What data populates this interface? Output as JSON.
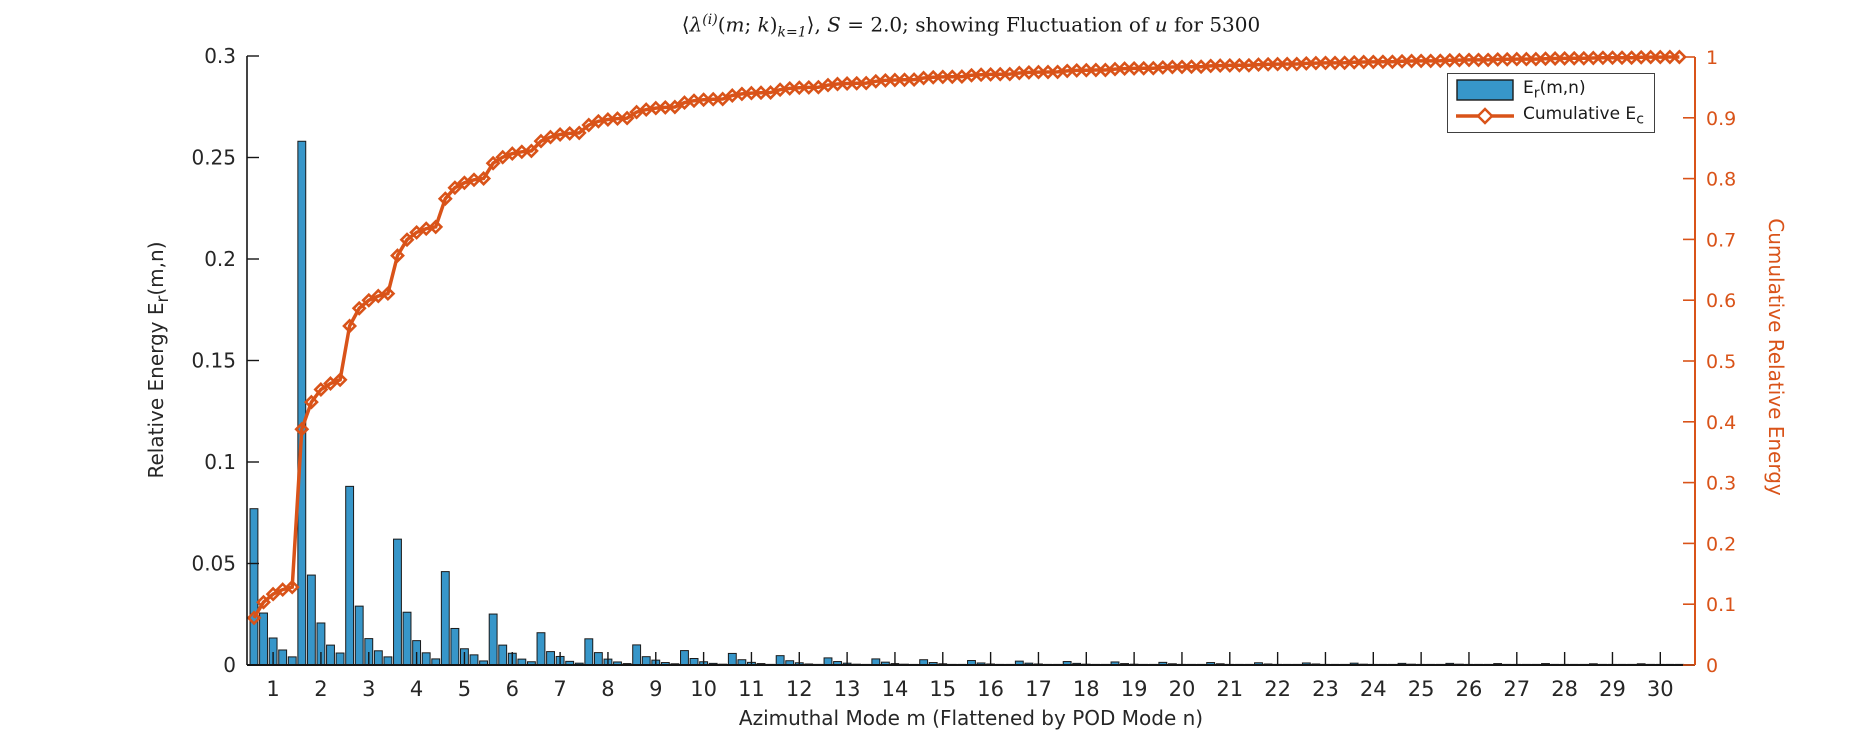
{
  "figure": {
    "background": "#ffffff",
    "title_plain": "⟨λ^(i)(m;k)_{k=1}⟩, S = 2.0; showing Fluctuation of u for 5300",
    "title_segments": [
      {
        "text": "⟨"
      },
      {
        "text": "λ",
        "italic": true
      },
      {
        "text": "(i)",
        "sup": true,
        "italic": true
      },
      {
        "text": "("
      },
      {
        "text": "m",
        "italic": true
      },
      {
        "text": "; "
      },
      {
        "text": "k",
        "italic": true
      },
      {
        "text": ")"
      },
      {
        "text": "k=1",
        "sub": true,
        "italic": true
      },
      {
        "text": "⟩, "
      },
      {
        "text": "S",
        "italic": true
      },
      {
        "text": " = 2.0; showing Fluctuation of "
      },
      {
        "text": "u",
        "italic": true
      },
      {
        "text": " for 5300"
      }
    ]
  },
  "axes": {
    "x": {
      "label": "Azimuthal Mode m (Flattened by POD Mode n)",
      "tick_labels": [
        "1",
        "2",
        "3",
        "4",
        "5",
        "6",
        "7",
        "8",
        "9",
        "10",
        "11",
        "12",
        "13",
        "14",
        "15",
        "16",
        "17",
        "18",
        "19",
        "20",
        "21",
        "22",
        "23",
        "24",
        "25",
        "26",
        "27",
        "28",
        "29",
        "30"
      ],
      "color": "#262626"
    },
    "y_left": {
      "label_segments": [
        {
          "text": "Relative Energy E"
        },
        {
          "text": "r",
          "sub": true
        },
        {
          "text": "(m,n)"
        }
      ],
      "tick_labels": [
        "0",
        "0.05",
        "0.1",
        "0.15",
        "0.2",
        "0.25",
        "0.3"
      ],
      "tick_values": [
        0,
        0.05,
        0.1,
        0.15,
        0.2,
        0.25,
        0.3
      ],
      "color": "#262626"
    },
    "y_right": {
      "label": "Cumulative Relative Energy",
      "tick_labels": [
        "0",
        "0.1",
        "0.2",
        "0.3",
        "0.4",
        "0.5",
        "0.6",
        "0.7",
        "0.8",
        "0.9",
        "1"
      ],
      "tick_values": [
        0,
        0.1,
        0.2,
        0.3,
        0.4,
        0.5,
        0.6,
        0.7,
        0.8,
        0.9,
        1
      ],
      "color": "#D95319"
    }
  },
  "legend": {
    "position": "top-right",
    "entries": [
      {
        "swatch": "bar",
        "label_segments": [
          {
            "text": "E"
          },
          {
            "text": "r",
            "sub": true
          },
          {
            "text": "(m,n)"
          }
        ]
      },
      {
        "swatch": "line",
        "label_segments": [
          {
            "text": "Cumulative E"
          },
          {
            "text": "c",
            "sub": true
          }
        ]
      }
    ]
  },
  "chart_data": {
    "type": "bar",
    "subtype": "bar-with-cumulative-line",
    "title": "⟨λ^(i)(m;k)_{k=1}⟩, S = 2.0; showing Fluctuation of u for 5300",
    "xlabel": "Azimuthal Mode m (Flattened by POD Mode n)",
    "ylabel_left": "Relative Energy E_r(m,n)",
    "ylabel_right": "Cumulative Relative Energy",
    "x_categories": [
      1,
      2,
      3,
      4,
      5,
      6,
      7,
      8,
      9,
      10,
      11,
      12,
      13,
      14,
      15,
      16,
      17,
      18,
      19,
      20,
      21,
      22,
      23,
      24,
      25,
      26,
      27,
      28,
      29,
      30
    ],
    "bars_per_group": 5,
    "ylim_left": [
      0,
      0.3
    ],
    "ylim_right": [
      0,
      1
    ],
    "grid": false,
    "legend_position": "top-right",
    "bar_color": "#3796C9",
    "bar_edge_color": "#1a1a1a",
    "line_color": "#D95319",
    "series": [
      {
        "name": "E_r(m,n)",
        "type": "bar",
        "groups": [
          [
            0.077,
            0.0256,
            0.0133,
            0.0074,
            0.004
          ],
          [
            0.258,
            0.0443,
            0.0207,
            0.0098,
            0.0059
          ],
          [
            0.088,
            0.029,
            0.013,
            0.007,
            0.004
          ],
          [
            0.062,
            0.026,
            0.012,
            0.006,
            0.003
          ],
          [
            0.046,
            0.018,
            0.008,
            0.005,
            0.002
          ],
          [
            0.0251,
            0.0098,
            0.0058,
            0.0029,
            0.0016
          ],
          [
            0.0159,
            0.0066,
            0.0042,
            0.0018,
            0.0009
          ],
          [
            0.0129,
            0.0061,
            0.0029,
            0.0015,
            0.0007
          ],
          [
            0.0099,
            0.0041,
            0.0024,
            0.0012,
            0.0006
          ],
          [
            0.0071,
            0.0032,
            0.0016,
            0.0008,
            0.0004
          ],
          [
            0.0057,
            0.0026,
            0.0013,
            0.0007,
            0.0003
          ],
          [
            0.0046,
            0.0021,
            0.0011,
            0.0005,
            0.0003
          ],
          [
            0.0035,
            0.0017,
            0.0009,
            0.0004,
            0.0002
          ],
          [
            0.003,
            0.0014,
            0.0007,
            0.0004,
            0.0002
          ],
          [
            0.0026,
            0.0012,
            0.0006,
            0.0003,
            0.0002
          ],
          [
            0.0022,
            0.001,
            0.0005,
            0.0003,
            0.0001
          ],
          [
            0.0019,
            0.0009,
            0.0005,
            0.0002,
            0.0001
          ],
          [
            0.0017,
            0.0008,
            0.0004,
            0.0002,
            0.0001
          ],
          [
            0.0015,
            0.0007,
            0.0004,
            0.0002,
            0.0001
          ],
          [
            0.0013,
            0.0006,
            0.0003,
            0.0002,
            0.0001
          ],
          [
            0.0012,
            0.0006,
            0.0003,
            0.0001,
            0.0001
          ],
          [
            0.0011,
            0.0005,
            0.0003,
            0.0001,
            0.0001
          ],
          [
            0.001,
            0.0005,
            0.0002,
            0.0001,
            0.0001
          ],
          [
            0.0009,
            0.0004,
            0.0002,
            0.0001,
            0.0001
          ],
          [
            0.0008,
            0.0004,
            0.0002,
            0.0001,
            0.0001
          ],
          [
            0.0008,
            0.0004,
            0.0002,
            0.0001,
            0.0
          ],
          [
            0.0007,
            0.0003,
            0.0002,
            0.0001,
            0.0
          ],
          [
            0.0007,
            0.0003,
            0.0001,
            0.0001,
            0.0
          ],
          [
            0.0006,
            0.0003,
            0.0001,
            0.0001,
            0.0
          ],
          [
            0.0006,
            0.0003,
            0.0001,
            0.0001,
            0.0
          ]
        ]
      },
      {
        "name": "Cumulative E_c",
        "type": "line",
        "marker": "diamond",
        "derivation": "cumulative sum of all bar values (flattened), normalized to end at 1.0",
        "end_value": 1.0
      }
    ]
  }
}
